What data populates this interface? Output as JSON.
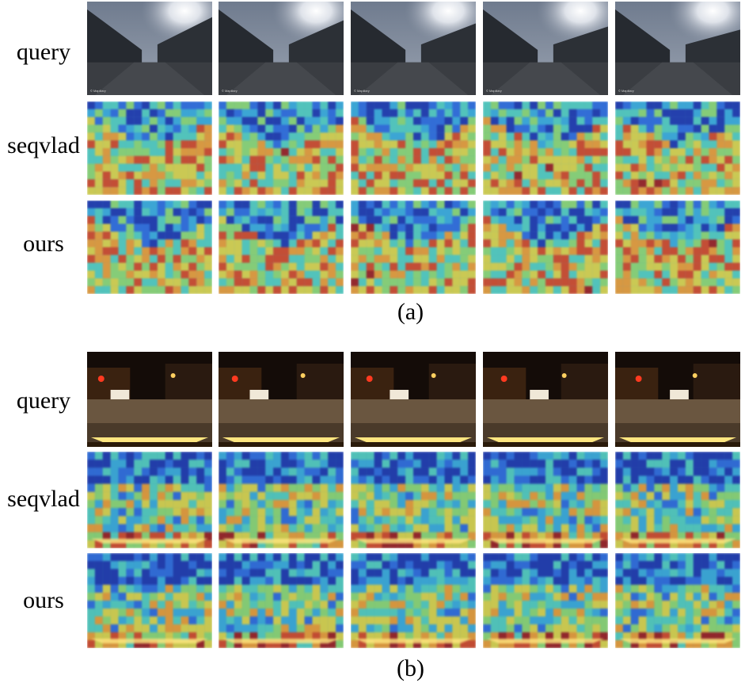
{
  "figure": {
    "panels": [
      {
        "id": "a",
        "caption": "(a)",
        "rows": [
          {
            "label": "query",
            "kind": "day-photo"
          },
          {
            "label": "seqvlad",
            "kind": "day-heatmap"
          },
          {
            "label": "ours",
            "kind": "day-heatmap"
          }
        ],
        "columns": 5
      },
      {
        "id": "b",
        "caption": "(b)",
        "rows": [
          {
            "label": "query",
            "kind": "night-photo"
          },
          {
            "label": "seqvlad",
            "kind": "night-heatmap"
          },
          {
            "label": "ours",
            "kind": "night-heatmap"
          }
        ],
        "columns": 5
      }
    ],
    "watermark": "© Mapillary"
  }
}
